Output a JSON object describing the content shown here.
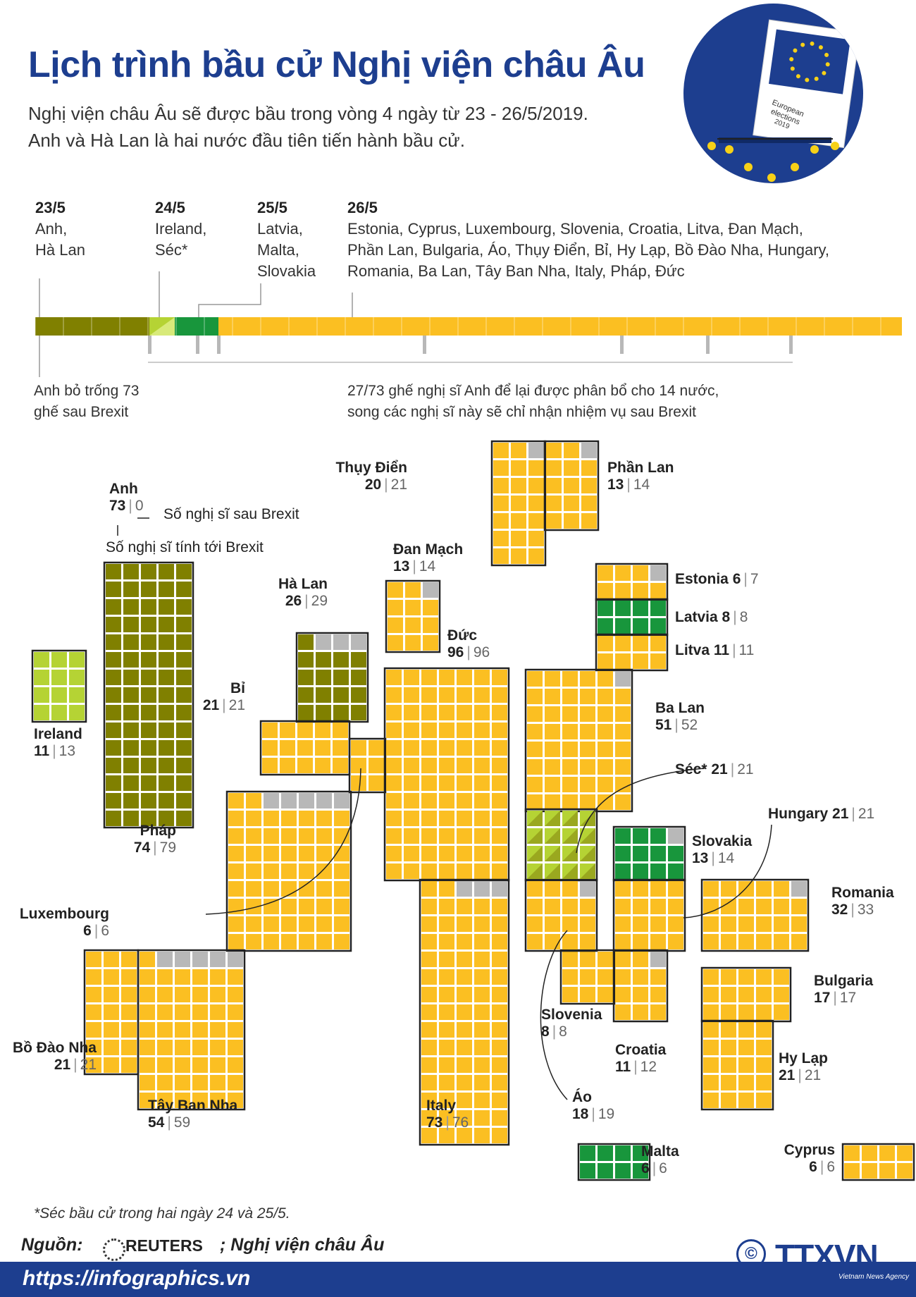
{
  "title": "Lịch trình bầu cử Nghị viện châu Âu",
  "subtitle_line1": "Nghị viện châu Âu sẽ được bầu trong vòng 4 ngày từ 23 - 26/5/2019.",
  "subtitle_line2": "Anh và Hà Lan là hai nước đầu tiên tiến hành bầu cử.",
  "badge": {
    "paper_text": [
      "European",
      "elections",
      "2019"
    ]
  },
  "timeline": {
    "days": [
      {
        "date": "23/5",
        "countries": [
          "Anh,",
          "Hà Lan"
        ]
      },
      {
        "date": "24/5",
        "countries": [
          "Ireland,",
          "Séc*"
        ]
      },
      {
        "date": "25/5",
        "countries": [
          "Latvia,",
          "Malta,",
          "Slovakia"
        ]
      },
      {
        "date": "26/5",
        "countries": [
          "Estonia, Cyprus, Luxembourg, Slovenia, Croatia, Litva, Đan Mạch,",
          "Phần Lan, Bulgaria, Áo, Thụy Điển, Bỉ, Hy Lạp, Bồ Đào Nha, Hungary,",
          "Romania, Ba Lan, Tây Ban Nha, Italy, Pháp, Đức"
        ]
      }
    ],
    "note_uk": [
      "Anh bỏ trống 73",
      "ghế sau Brexit"
    ],
    "note_realloc": [
      "27/73 ghế nghị sĩ Anh để lại được phân bổ cho 14 nước,",
      "song các nghị sĩ này sẽ chỉ nhận nhiệm vụ sau Brexit"
    ]
  },
  "legend": {
    "after_label": "Số nghị sĩ sau Brexit",
    "before_label": "Số nghị sĩ tính tới Brexit"
  },
  "colors": {
    "day23": "#808000",
    "day24": "#b5d334",
    "day25": "#18963c",
    "day26": "#fbbf22",
    "reallocated": "#b8b8b8",
    "title": "#1d3e8f"
  },
  "countries": [
    {
      "name": "Anh",
      "before": "73",
      "after": "0",
      "day": "23/5"
    },
    {
      "name": "Ireland",
      "before": "11",
      "after": "13",
      "day": "24/5"
    },
    {
      "name": "Hà Lan",
      "before": "26",
      "after": "29",
      "day": "23/5"
    },
    {
      "name": "Bỉ",
      "before": "21",
      "after": "21",
      "day": "26/5"
    },
    {
      "name": "Pháp",
      "before": "74",
      "after": "79",
      "day": "26/5"
    },
    {
      "name": "Luxembourg",
      "before": "6",
      "after": "6",
      "day": "26/5"
    },
    {
      "name": "Bồ Đào Nha",
      "before": "21",
      "after": "21",
      "day": "26/5"
    },
    {
      "name": "Tây Ban Nha",
      "before": "54",
      "after": "59",
      "day": "26/5"
    },
    {
      "name": "Thụy Điển",
      "before": "20",
      "after": "21",
      "day": "26/5"
    },
    {
      "name": "Phần Lan",
      "before": "13",
      "after": "14",
      "day": "26/5"
    },
    {
      "name": "Đan Mạch",
      "before": "13",
      "after": "14",
      "day": "26/5"
    },
    {
      "name": "Đức",
      "before": "96",
      "after": "96",
      "day": "26/5"
    },
    {
      "name": "Estonia",
      "before": "6",
      "after": "7",
      "day": "26/5"
    },
    {
      "name": "Latvia",
      "before": "8",
      "after": "8",
      "day": "25/5"
    },
    {
      "name": "Litva",
      "before": "11",
      "after": "11",
      "day": "26/5"
    },
    {
      "name": "Ba Lan",
      "before": "51",
      "after": "52",
      "day": "26/5"
    },
    {
      "name": "Séc*",
      "before": "21",
      "after": "21",
      "day": "24/5"
    },
    {
      "name": "Slovakia",
      "before": "13",
      "after": "14",
      "day": "25/5"
    },
    {
      "name": "Hungary",
      "before": "21",
      "after": "21",
      "day": "26/5"
    },
    {
      "name": "Romania",
      "before": "32",
      "after": "33",
      "day": "26/5"
    },
    {
      "name": "Bulgaria",
      "before": "17",
      "after": "17",
      "day": "26/5"
    },
    {
      "name": "Hy Lạp",
      "before": "21",
      "after": "21",
      "day": "26/5"
    },
    {
      "name": "Slovenia",
      "before": "8",
      "after": "8",
      "day": "26/5"
    },
    {
      "name": "Croatia",
      "before": "11",
      "after": "12",
      "day": "26/5"
    },
    {
      "name": "Áo",
      "before": "18",
      "after": "19",
      "day": "26/5"
    },
    {
      "name": "Italy",
      "before": "73",
      "after": "76",
      "day": "26/5"
    },
    {
      "name": "Malta",
      "before": "6",
      "after": "6",
      "day": "25/5"
    },
    {
      "name": "Cyprus",
      "before": "6",
      "after": "6",
      "day": "26/5"
    }
  ],
  "footnote": "*Séc bầu cử trong hai ngày 24 và 25/5.",
  "source": {
    "label": "Nguồn:",
    "reuters": "REUTERS",
    "other": "; Nghị viện châu Âu"
  },
  "url": "https://infographics.vn",
  "agency": {
    "logo": "TTXVN",
    "english": "Vietnam News Agency",
    "copyright": "©"
  }
}
